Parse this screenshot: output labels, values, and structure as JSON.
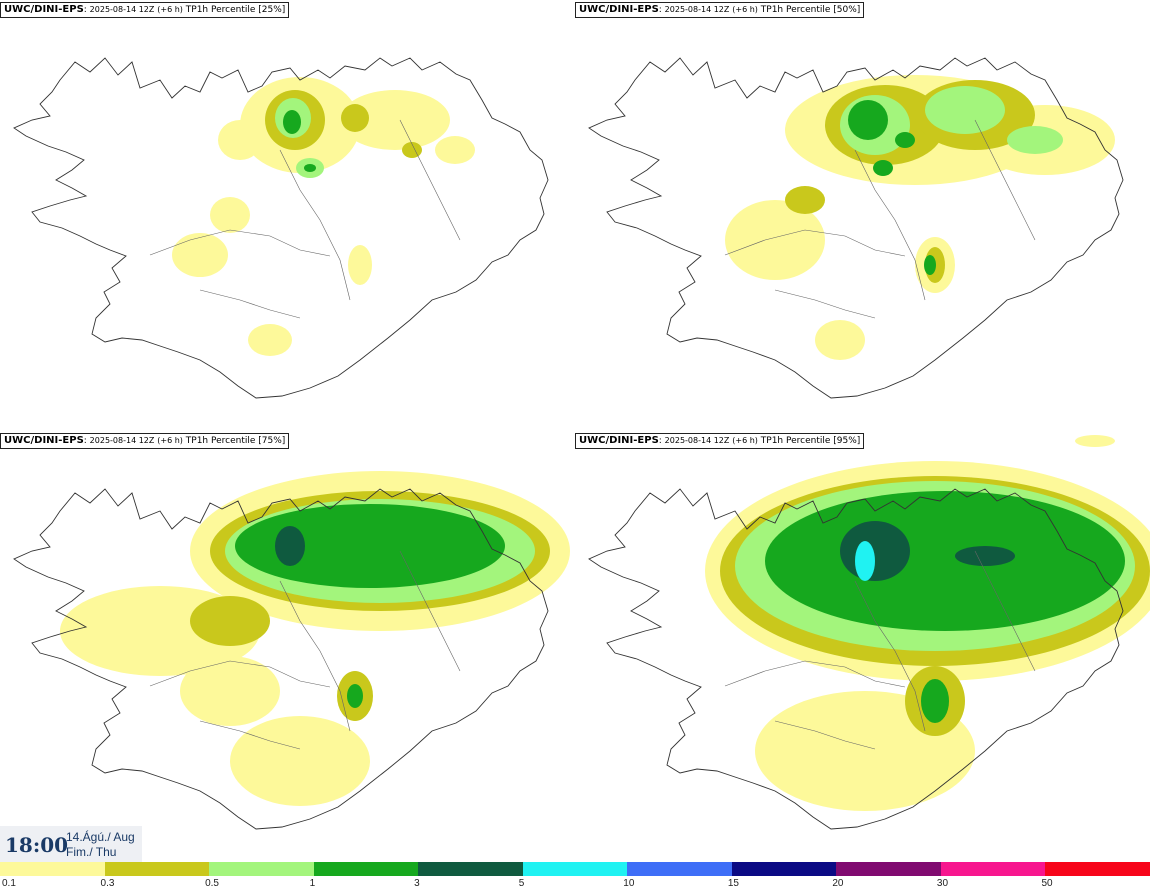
{
  "panels": [
    {
      "source": "UWC/DINI-EPS",
      "run": "2025-08-14 12Z",
      "lead": "(+6 h)",
      "parameter": "TP1h Percentile [25%]"
    },
    {
      "source": "UWC/DINI-EPS",
      "run": "2025-08-14 12Z",
      "lead": "(+6 h)",
      "parameter": "TP1h Percentile [50%]"
    },
    {
      "source": "UWC/DINI-EPS",
      "run": "2025-08-14 12Z",
      "lead": "(+6 h)",
      "parameter": "TP1h Percentile [75%]"
    },
    {
      "source": "UWC/DINI-EPS",
      "run": "2025-08-14 12Z",
      "lead": "(+6 h)",
      "parameter": "TP1h Percentile [95%]"
    }
  ],
  "valid_time": {
    "time": "18:00",
    "date_line1": "14.Ágú./ Aug",
    "date_line2": "Fim./ Thu"
  },
  "legend": {
    "colors": [
      "#fdf99a",
      "#c9c81c",
      "#a3f57c",
      "#16a81e",
      "#0f5a3f",
      "#20f2f2",
      "#3e6ef7",
      "#0b0a84",
      "#800a70",
      "#f7168e",
      "#f7051a"
    ],
    "ticks": [
      "0.1",
      "0.3",
      "0.5",
      "1",
      "3",
      "5",
      "10",
      "15",
      "20",
      "30",
      "50"
    ]
  }
}
